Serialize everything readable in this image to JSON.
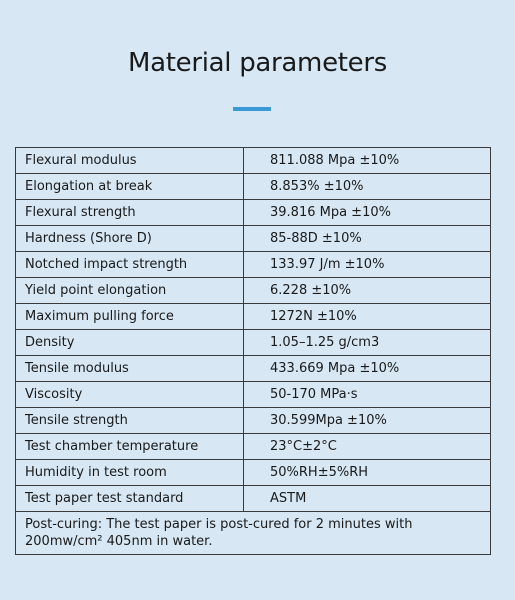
{
  "header": {
    "title": "Material parameters"
  },
  "table": {
    "rows": [
      [
        "Flexural modulus",
        "811.088 Mpa ±10%"
      ],
      [
        "Elongation at break",
        "8.853% ±10%"
      ],
      [
        "Flexural strength",
        "39.816 Mpa ±10%"
      ],
      [
        "Hardness (Shore D)",
        "85-88D ±10%"
      ],
      [
        "Notched impact strength",
        "133.97 J/m ±10%"
      ],
      [
        "Yield point elongation",
        "6.228 ±10%"
      ],
      [
        "Maximum pulling force",
        "1272N ±10%"
      ],
      [
        "Density",
        "1.05–1.25 g/cm3"
      ],
      [
        "Tensile modulus",
        "433.669 Mpa ±10%"
      ],
      [
        "Viscosity",
        "50-170 MPa·s"
      ],
      [
        "Tensile strength",
        "30.599Mpa ±10%"
      ],
      [
        "Test chamber temperature",
        "23°C±2°C"
      ],
      [
        "Humidity in test room",
        "50%RH±5%RH"
      ],
      [
        "Test paper test standard",
        "ASTM"
      ]
    ],
    "footnote": "Post-curing: The test paper is post-cured for 2 minutes with 200mw/cm² 405nm in water."
  }
}
